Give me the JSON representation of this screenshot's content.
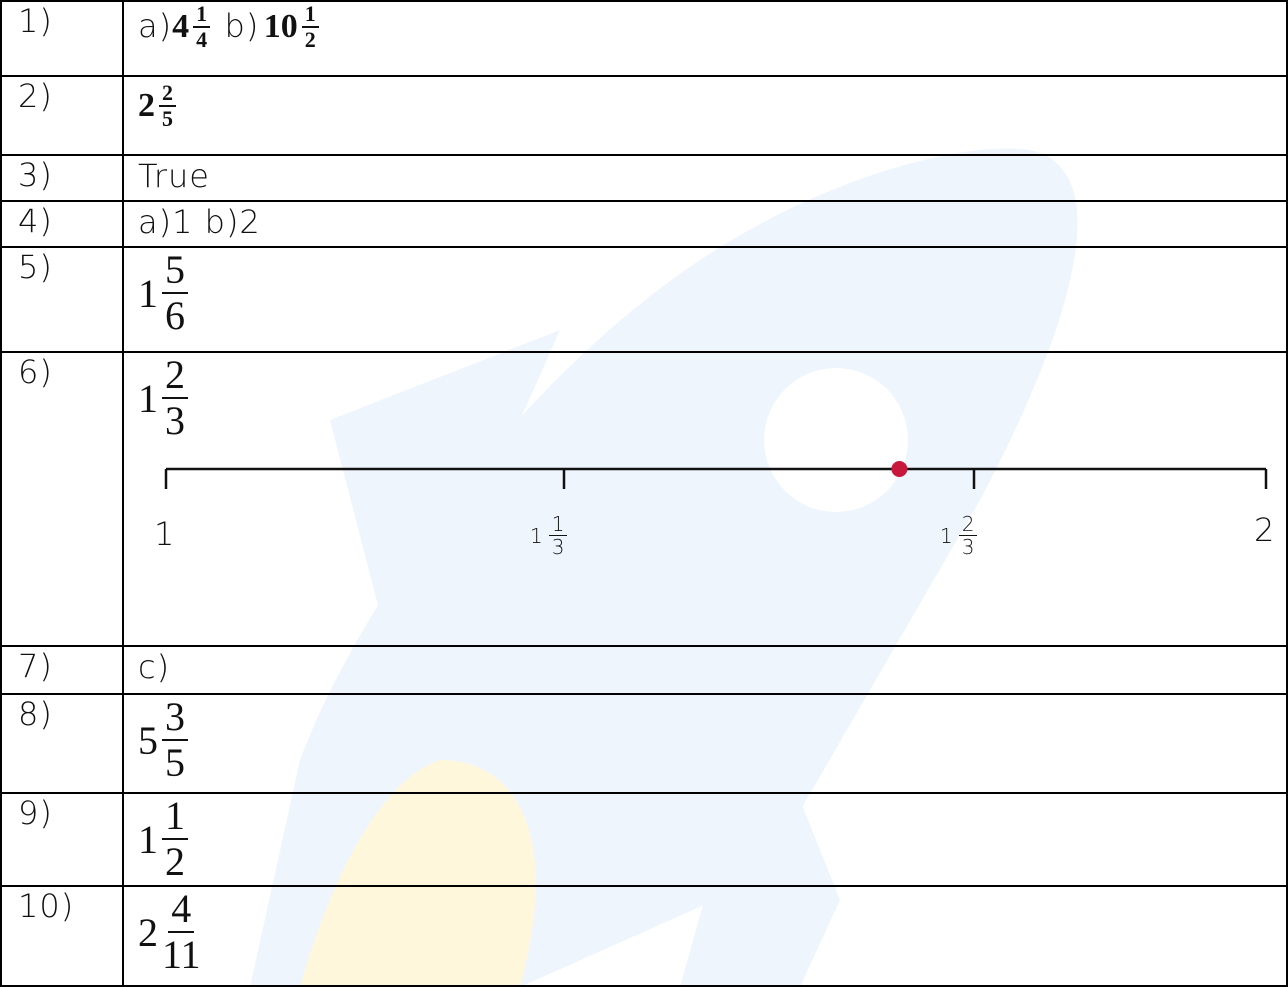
{
  "rows": [
    {
      "number": "1)",
      "a_label": "a)",
      "a_whole": "4",
      "a_num": "1",
      "a_den": "4",
      "b_label": "b)",
      "b_whole": "10",
      "b_num": "1",
      "b_den": "2"
    },
    {
      "number": "2)",
      "whole": "2",
      "num": "2",
      "den": "5"
    },
    {
      "number": "3)",
      "text": "True"
    },
    {
      "number": "4)",
      "text": "a)1 b)2"
    },
    {
      "number": "5)",
      "whole": "1",
      "num": "5",
      "den": "6"
    },
    {
      "number": "6)",
      "whole": "1",
      "num": "2",
      "den": "3"
    },
    {
      "number": "7)",
      "text": "c)"
    },
    {
      "number": "8)",
      "whole": "5",
      "num": "3",
      "den": "5"
    },
    {
      "number": "9)",
      "whole": "1",
      "num": "1",
      "den": "2"
    },
    {
      "number": "10)",
      "whole": "2",
      "num": "4",
      "den": "11"
    }
  ],
  "number_line": {
    "start_label": "1",
    "end_label": "2",
    "tick1": {
      "whole": "1",
      "num": "1",
      "den": "3"
    },
    "tick2": {
      "whole": "1",
      "num": "2",
      "den": "3"
    },
    "marked_value": 0.6667,
    "marker_color": "#c8193c"
  },
  "colors": {
    "watermark_blue": "#eef5fd",
    "watermark_yellow": "#fff7dc"
  }
}
